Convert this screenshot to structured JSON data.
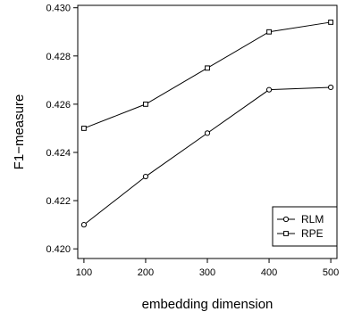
{
  "chart_data": {
    "type": "line",
    "title": "",
    "xlabel": "embedding dimension",
    "ylabel": "F1−measure",
    "x": [
      100,
      200,
      300,
      400,
      500
    ],
    "x_ticks": [
      100,
      200,
      300,
      400,
      500
    ],
    "y_ticks": [
      0.42,
      0.422,
      0.424,
      0.426,
      0.428,
      0.43
    ],
    "y_tick_labels": [
      "0.420",
      "0.422",
      "0.424",
      "0.426",
      "0.428",
      "0.430"
    ],
    "xlim": [
      90,
      510
    ],
    "ylim": [
      0.4196,
      0.4301
    ],
    "grid": false,
    "legend_position": "bottom-right",
    "series": [
      {
        "name": "RLM",
        "marker": "circle",
        "color": "#000000",
        "values": [
          0.421,
          0.423,
          0.4248,
          0.4266,
          0.4267
        ]
      },
      {
        "name": "RPE",
        "marker": "square",
        "color": "#000000",
        "values": [
          0.425,
          0.426,
          0.4275,
          0.429,
          0.4294
        ]
      }
    ]
  }
}
